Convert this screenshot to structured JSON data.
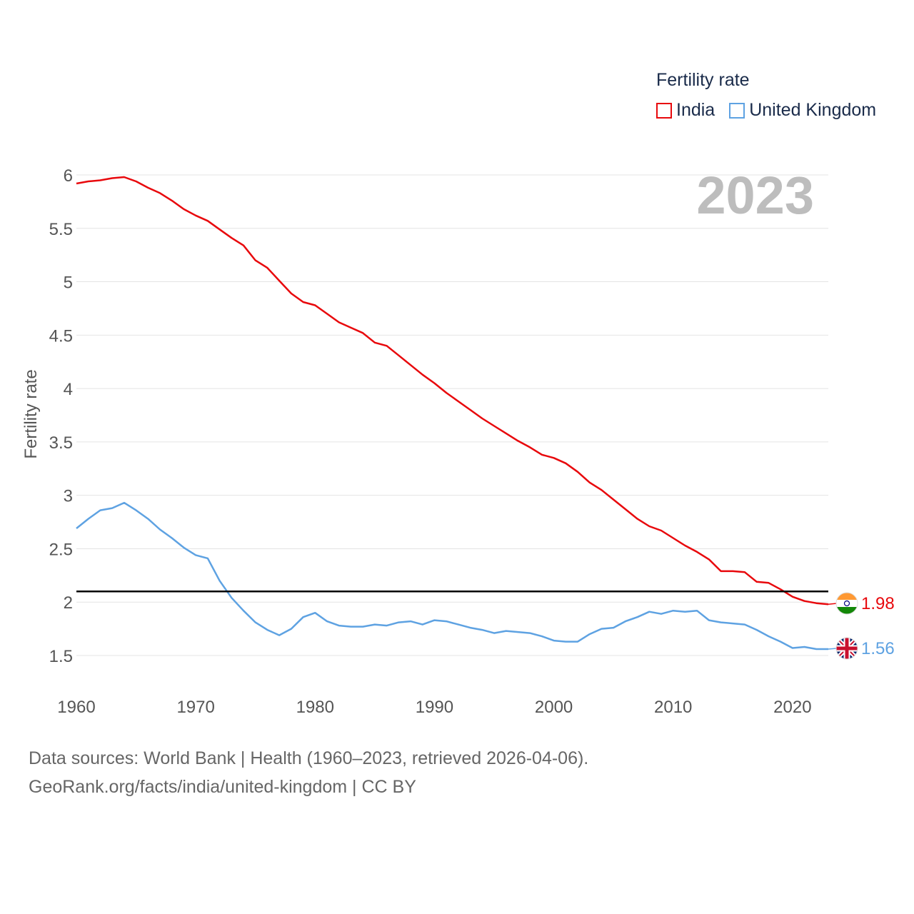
{
  "chart_data": {
    "type": "line",
    "title": "Fertility rate",
    "ylabel": "Fertility rate",
    "xlabel": "",
    "year_label": "2023",
    "xlim": [
      1960,
      2023
    ],
    "ylim": [
      1.2,
      6.2
    ],
    "yticks": [
      1.5,
      2,
      2.5,
      3,
      3.5,
      4,
      4.5,
      5,
      5.5,
      6
    ],
    "xticks": [
      1960,
      1970,
      1980,
      1990,
      2000,
      2010,
      2020
    ],
    "reference_line": {
      "y": 2.1,
      "color": "#000000"
    },
    "x": [
      1960,
      1961,
      1962,
      1963,
      1964,
      1965,
      1966,
      1967,
      1968,
      1969,
      1970,
      1971,
      1972,
      1973,
      1974,
      1975,
      1976,
      1977,
      1978,
      1979,
      1980,
      1981,
      1982,
      1983,
      1984,
      1985,
      1986,
      1987,
      1988,
      1989,
      1990,
      1991,
      1992,
      1993,
      1994,
      1995,
      1996,
      1997,
      1998,
      1999,
      2000,
      2001,
      2002,
      2003,
      2004,
      2005,
      2006,
      2007,
      2008,
      2009,
      2010,
      2011,
      2012,
      2013,
      2014,
      2015,
      2016,
      2017,
      2018,
      2019,
      2020,
      2021,
      2022,
      2023
    ],
    "series": [
      {
        "name": "India",
        "color": "#e8080c",
        "end_label": "1.98",
        "flag": "india-flag",
        "values": [
          5.92,
          5.94,
          5.95,
          5.97,
          5.98,
          5.94,
          5.88,
          5.83,
          5.76,
          5.68,
          5.62,
          5.57,
          5.49,
          5.41,
          5.34,
          5.2,
          5.13,
          5.01,
          4.89,
          4.81,
          4.78,
          4.7,
          4.62,
          4.57,
          4.52,
          4.43,
          4.4,
          4.31,
          4.22,
          4.13,
          4.05,
          3.96,
          3.88,
          3.8,
          3.72,
          3.65,
          3.58,
          3.51,
          3.45,
          3.38,
          3.35,
          3.3,
          3.22,
          3.12,
          3.05,
          2.96,
          2.87,
          2.78,
          2.71,
          2.67,
          2.6,
          2.53,
          2.47,
          2.4,
          2.29,
          2.29,
          2.28,
          2.19,
          2.18,
          2.12,
          2.05,
          2.01,
          1.99,
          1.98
        ]
      },
      {
        "name": "United Kingdom",
        "color": "#5ea2e2",
        "end_label": "1.56",
        "flag": "uk-flag",
        "values": [
          2.69,
          2.78,
          2.86,
          2.88,
          2.93,
          2.86,
          2.78,
          2.68,
          2.6,
          2.51,
          2.44,
          2.41,
          2.2,
          2.04,
          1.92,
          1.81,
          1.74,
          1.69,
          1.75,
          1.86,
          1.9,
          1.82,
          1.78,
          1.77,
          1.77,
          1.79,
          1.78,
          1.81,
          1.82,
          1.79,
          1.83,
          1.82,
          1.79,
          1.76,
          1.74,
          1.71,
          1.73,
          1.72,
          1.71,
          1.68,
          1.64,
          1.63,
          1.63,
          1.7,
          1.75,
          1.76,
          1.82,
          1.86,
          1.91,
          1.89,
          1.92,
          1.91,
          1.92,
          1.83,
          1.81,
          1.8,
          1.79,
          1.74,
          1.68,
          1.63,
          1.57,
          1.58,
          1.56,
          1.56
        ]
      }
    ]
  },
  "sources": {
    "line1": "Data sources: World Bank | Health (1960–2023, retrieved 2026-04-06).",
    "line2": "GeoRank.org/facts/india/united-kingdom | CC BY"
  }
}
